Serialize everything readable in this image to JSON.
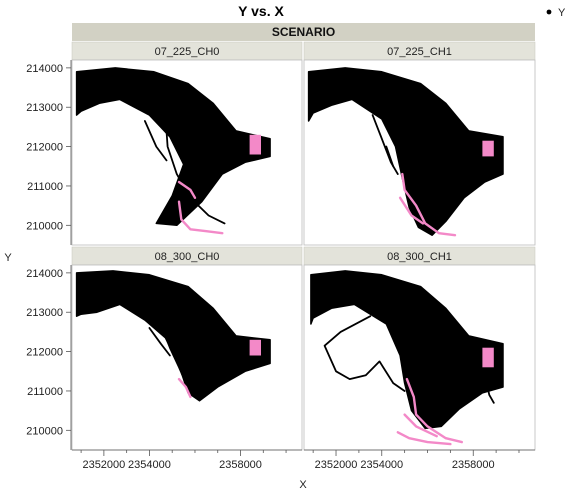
{
  "chart_data": {
    "type": "scatter",
    "title": "Y vs. X",
    "xlabel": "X",
    "ylabel": "Y",
    "group_header": "SCENARIO",
    "legend": {
      "label": "Y",
      "placement": "top-right"
    },
    "xlim": [
      2350600,
      2360700
    ],
    "ylim": [
      209500,
      214200
    ],
    "x_ticks": [
      2352000,
      2354000,
      2358000
    ],
    "y_ticks": [
      210000,
      211000,
      212000,
      213000,
      214000
    ],
    "colors": {
      "main": "#000000",
      "highlight": "#f389c8",
      "strip": "#e3e3da",
      "scenario": "#d2d1c4"
    },
    "panels": [
      {
        "name": "07_225_CH0",
        "band": [
          [
            2350800,
            213900
          ],
          [
            2352500,
            214000
          ],
          [
            2354200,
            213900
          ],
          [
            2355700,
            213600
          ],
          [
            2356800,
            213100
          ],
          [
            2357800,
            212400
          ],
          [
            2359300,
            212200
          ],
          [
            2359300,
            211750
          ],
          [
            2358200,
            211600
          ],
          [
            2357200,
            211300
          ],
          [
            2356300,
            210600
          ],
          [
            2355200,
            210000
          ],
          [
            2354300,
            210050
          ],
          [
            2355000,
            210750
          ],
          [
            2355500,
            211550
          ],
          [
            2354900,
            212250
          ],
          [
            2354000,
            212800
          ],
          [
            2352700,
            213200
          ],
          [
            2351800,
            213100
          ],
          [
            2351000,
            212900
          ],
          [
            2350800,
            212800
          ]
        ],
        "highlight_polygon": [
          [
            2358400,
            212300
          ],
          [
            2358900,
            212300
          ],
          [
            2358900,
            211800
          ],
          [
            2358400,
            211800
          ]
        ],
        "trails": [
          [
            [
              2354700,
              212800
            ],
            [
              2354800,
              212000
            ],
            [
              2355200,
              211300
            ],
            [
              2355800,
              210700
            ],
            [
              2356600,
              210250
            ],
            [
              2357300,
              210050
            ]
          ],
          [
            [
              2353800,
              212650
            ],
            [
              2354300,
              212000
            ],
            [
              2354750,
              211650
            ]
          ]
        ],
        "highlight_trails": [
          [
            [
              2355300,
              211100
            ],
            [
              2355800,
              210900
            ],
            [
              2356000,
              210700
            ]
          ],
          [
            [
              2355300,
              210600
            ],
            [
              2355400,
              210150
            ],
            [
              2355800,
              209900
            ],
            [
              2356500,
              209850
            ],
            [
              2357200,
              209800
            ]
          ]
        ]
      },
      {
        "name": "07_225_CH1",
        "band": [
          [
            2350800,
            213900
          ],
          [
            2352400,
            214000
          ],
          [
            2354000,
            213900
          ],
          [
            2355700,
            213600
          ],
          [
            2356800,
            213100
          ],
          [
            2357800,
            212400
          ],
          [
            2359300,
            212250
          ],
          [
            2359300,
            211300
          ],
          [
            2358500,
            211100
          ],
          [
            2357600,
            210700
          ],
          [
            2356800,
            210100
          ],
          [
            2356200,
            209750
          ],
          [
            2355600,
            209950
          ],
          [
            2355200,
            210450
          ],
          [
            2354900,
            211200
          ],
          [
            2354600,
            212000
          ],
          [
            2354000,
            212700
          ],
          [
            2352700,
            213200
          ],
          [
            2351800,
            213050
          ],
          [
            2351000,
            212850
          ],
          [
            2350800,
            212650
          ]
        ],
        "highlight_polygon": [
          [
            2358400,
            212150
          ],
          [
            2358900,
            212150
          ],
          [
            2358900,
            211750
          ],
          [
            2358400,
            211750
          ]
        ],
        "trails": [
          [
            [
              2353600,
              212800
            ],
            [
              2354000,
              212200
            ],
            [
              2354400,
              211600
            ],
            [
              2354700,
              211300
            ]
          ],
          [
            [
              2354200,
              212000
            ],
            [
              2354500,
              211500
            ]
          ]
        ],
        "highlight_trails": [
          [
            [
              2354900,
              211300
            ],
            [
              2355000,
              210900
            ],
            [
              2355500,
              210500
            ],
            [
              2355900,
              210050
            ],
            [
              2356500,
              209800
            ],
            [
              2357200,
              209750
            ]
          ],
          [
            [
              2354800,
              210700
            ],
            [
              2355300,
              210250
            ],
            [
              2355800,
              210050
            ]
          ]
        ]
      },
      {
        "name": "08_300_CH0",
        "band": [
          [
            2350800,
            214000
          ],
          [
            2352400,
            214050
          ],
          [
            2354000,
            213950
          ],
          [
            2355700,
            213650
          ],
          [
            2356800,
            213100
          ],
          [
            2357800,
            212400
          ],
          [
            2359300,
            212300
          ],
          [
            2359300,
            211700
          ],
          [
            2358200,
            211500
          ],
          [
            2357000,
            211100
          ],
          [
            2356200,
            210750
          ],
          [
            2355700,
            210950
          ],
          [
            2355300,
            211650
          ],
          [
            2354700,
            212350
          ],
          [
            2353800,
            212800
          ],
          [
            2352700,
            213200
          ],
          [
            2351700,
            213000
          ],
          [
            2351000,
            212950
          ],
          [
            2350800,
            212900
          ]
        ],
        "highlight_polygon": [
          [
            2358400,
            212300
          ],
          [
            2358900,
            212300
          ],
          [
            2358900,
            211900
          ],
          [
            2358400,
            211900
          ]
        ],
        "trails": [
          [
            [
              2354500,
              212700
            ],
            [
              2354900,
              212100
            ],
            [
              2355300,
              211600
            ],
            [
              2355600,
              211200
            ]
          ],
          [
            [
              2354000,
              212600
            ],
            [
              2354500,
              212200
            ],
            [
              2354900,
              211900
            ]
          ]
        ],
        "highlight_trails": [
          [
            [
              2355300,
              211300
            ],
            [
              2355600,
              211100
            ],
            [
              2355800,
              210850
            ]
          ]
        ]
      },
      {
        "name": "08_300_CH1",
        "band": [
          [
            2350900,
            213950
          ],
          [
            2352400,
            214050
          ],
          [
            2354000,
            213950
          ],
          [
            2355700,
            213650
          ],
          [
            2356800,
            213100
          ],
          [
            2357800,
            212400
          ],
          [
            2359300,
            212200
          ],
          [
            2359300,
            211100
          ],
          [
            2358400,
            210950
          ],
          [
            2357400,
            210550
          ],
          [
            2356600,
            210100
          ],
          [
            2355900,
            210050
          ],
          [
            2355300,
            210500
          ],
          [
            2355000,
            211200
          ],
          [
            2354800,
            211900
          ],
          [
            2354200,
            212700
          ],
          [
            2352800,
            213200
          ],
          [
            2351800,
            213100
          ],
          [
            2351000,
            212850
          ],
          [
            2350900,
            212700
          ]
        ],
        "highlight_polygon": [
          [
            2358400,
            212100
          ],
          [
            2358900,
            212100
          ],
          [
            2358900,
            211600
          ],
          [
            2358400,
            211600
          ]
        ],
        "trails": [
          [
            [
              2353500,
              212900
            ],
            [
              2352200,
              212500
            ],
            [
              2351500,
              212150
            ],
            [
              2352000,
              211500
            ],
            [
              2352600,
              211300
            ],
            [
              2353300,
              211400
            ],
            [
              2353900,
              211750
            ],
            [
              2354500,
              211200
            ],
            [
              2355000,
              211000
            ]
          ],
          [
            [
              2358500,
              211400
            ],
            [
              2358700,
              210900
            ],
            [
              2358900,
              210700
            ]
          ]
        ],
        "highlight_trails": [
          [
            [
              2355100,
              211300
            ],
            [
              2355400,
              210850
            ],
            [
              2355500,
              210400
            ],
            [
              2356000,
              210100
            ],
            [
              2356800,
              209800
            ],
            [
              2357500,
              209700
            ]
          ],
          [
            [
              2355000,
              210400
            ],
            [
              2355500,
              210100
            ],
            [
              2356400,
              209850
            ]
          ],
          [
            [
              2354700,
              209950
            ],
            [
              2355200,
              209800
            ],
            [
              2356000,
              209700
            ],
            [
              2357000,
              209650
            ]
          ]
        ]
      }
    ]
  }
}
